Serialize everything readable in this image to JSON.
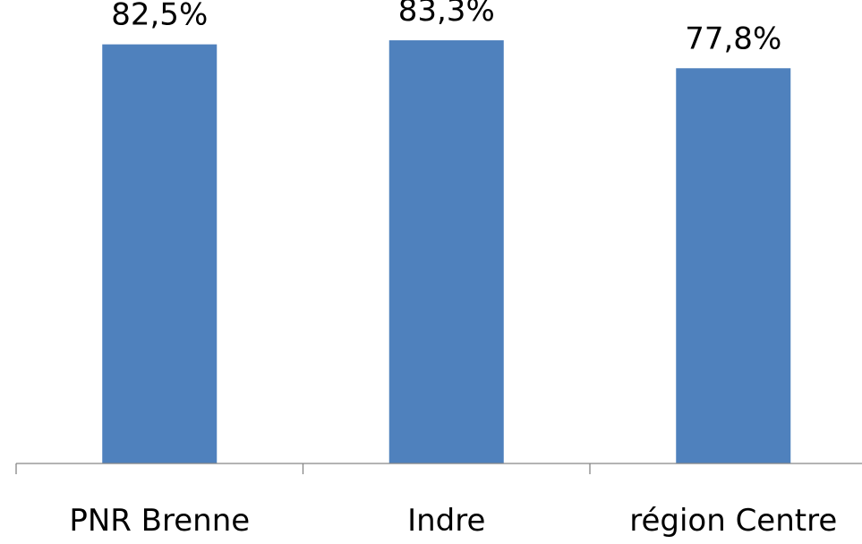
{
  "chart_data": {
    "type": "bar",
    "categories": [
      "PNR Brenne",
      "Indre",
      "région Centre"
    ],
    "values": [
      82.5,
      83.3,
      77.8
    ],
    "value_labels": [
      "82,5%",
      "83,3%",
      "77,8%"
    ],
    "ylim": [
      0,
      90
    ],
    "grid": false,
    "legend": "none",
    "bar_color": "#4F81BD",
    "axis_color": "#868686"
  }
}
